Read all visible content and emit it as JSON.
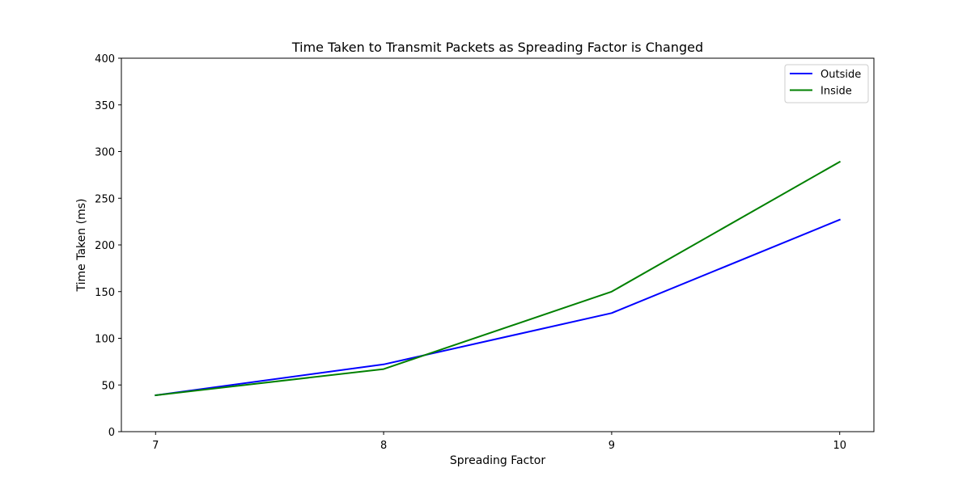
{
  "chart_data": {
    "type": "line",
    "title": "Time Taken to Transmit Packets as Spreading Factor is Changed",
    "xlabel": "Spreading Factor",
    "ylabel": "Time Taken (ms)",
    "x": [
      7,
      8,
      9,
      10
    ],
    "x_ticks": [
      "7",
      "8",
      "9",
      "10"
    ],
    "xlim": [
      6.85,
      10.15
    ],
    "ylim": [
      0,
      400
    ],
    "y_ticks": [
      "0",
      "50",
      "100",
      "150",
      "200",
      "250",
      "300",
      "350",
      "400"
    ],
    "grid": false,
    "legend_position": "top-right",
    "series": [
      {
        "name": "Outside",
        "color": "#0000ff",
        "values": [
          39,
          72,
          127,
          227
        ]
      },
      {
        "name": "Inside",
        "color": "#008000",
        "values": [
          39,
          67,
          150,
          289
        ]
      }
    ]
  }
}
